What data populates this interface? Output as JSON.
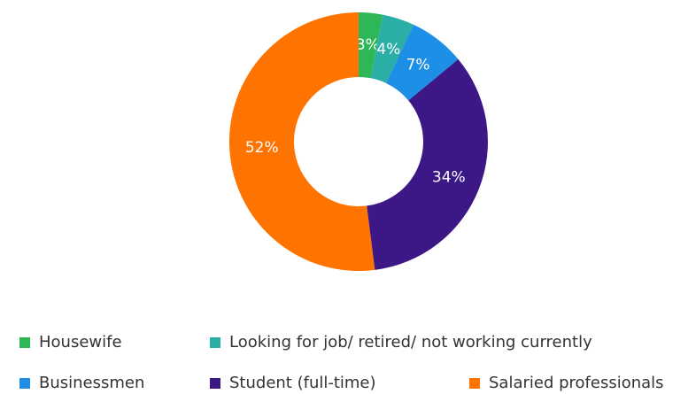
{
  "chart_data": {
    "type": "pie",
    "donut": true,
    "categories": [
      "Housewife",
      "Looking for job/ retired/ not working currently",
      "Businessmen",
      "Student (full-time)",
      "Salaried professionals"
    ],
    "values": [
      3,
      4,
      7,
      34,
      52
    ],
    "value_labels": [
      "3%",
      "4%",
      "7%",
      "34%",
      "52%"
    ],
    "colors": [
      "#2db757",
      "#2aaea6",
      "#1d8fe6",
      "#3c1786",
      "#ff7300"
    ]
  }
}
